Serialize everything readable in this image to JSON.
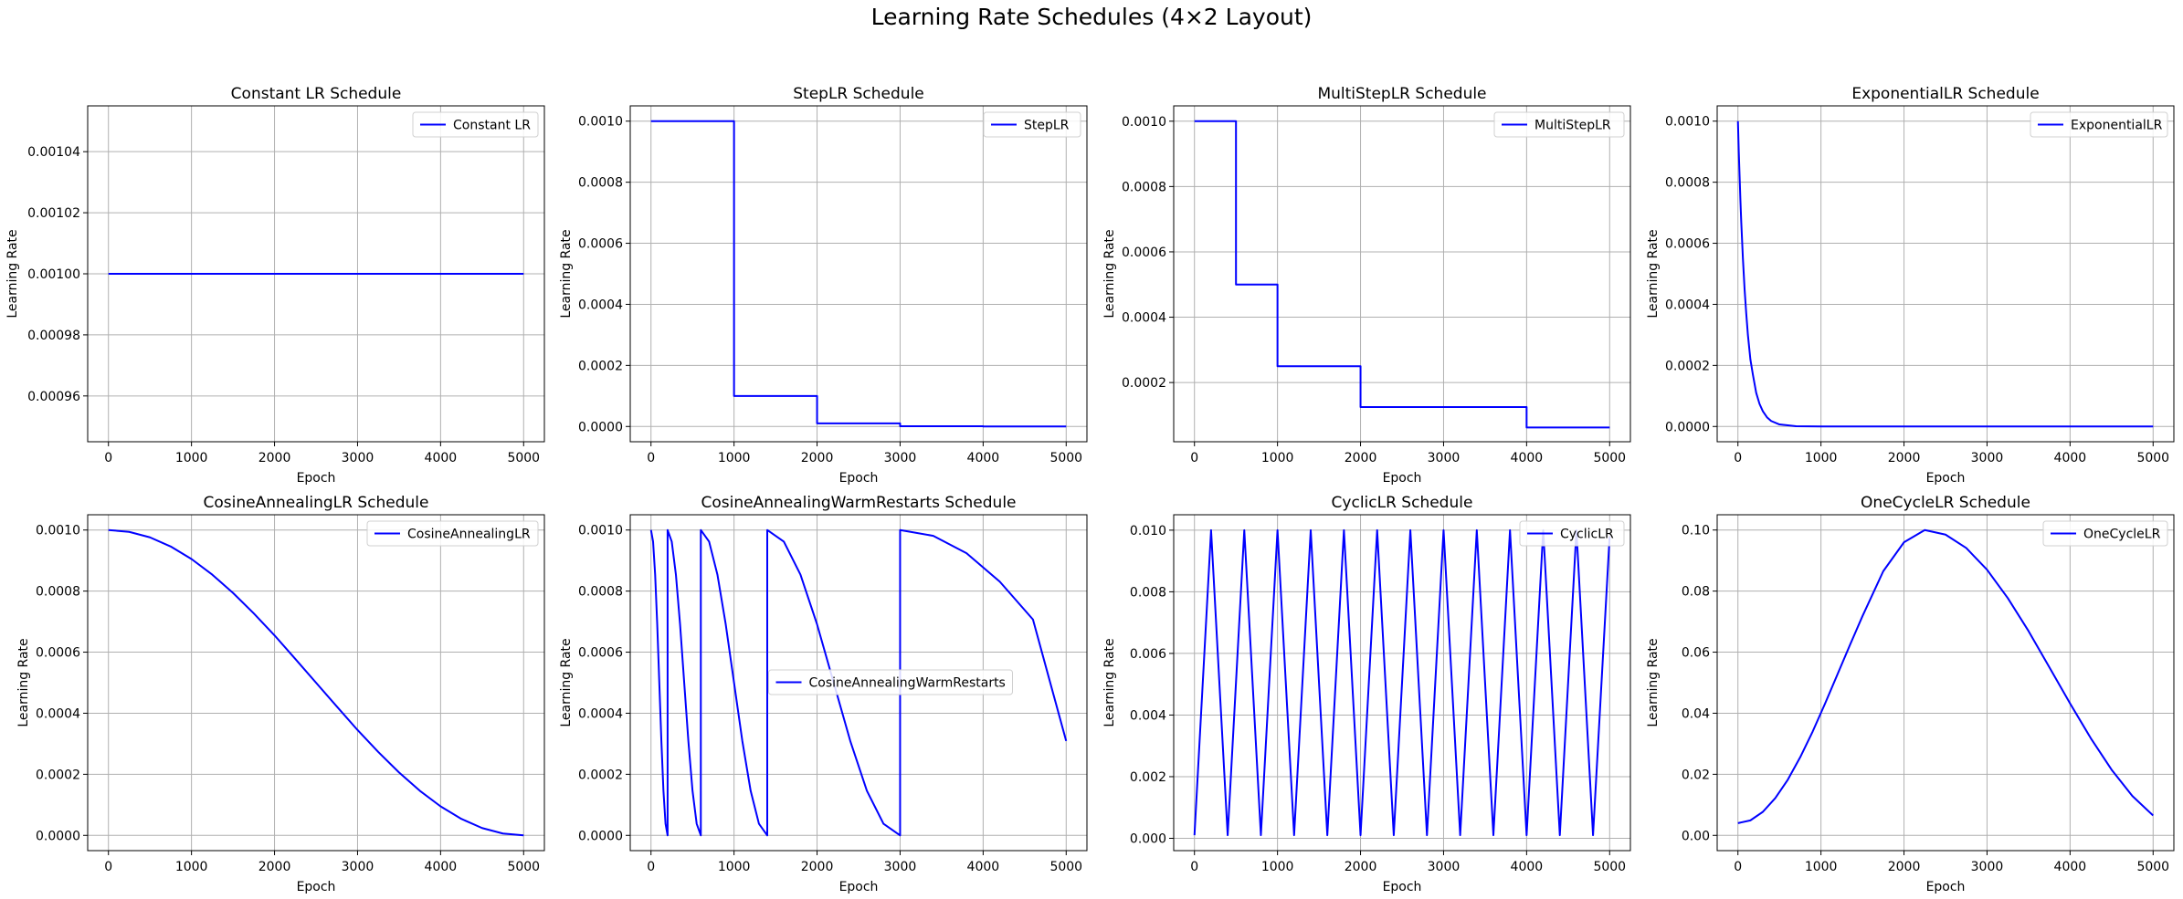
{
  "figure": {
    "suptitle": "Learning Rate Schedules (4×2 Layout)",
    "line_color": "#0000ff",
    "grid_color": "#b0b0b0"
  },
  "chart_data": [
    {
      "type": "line",
      "title": "Constant LR Schedule",
      "xlabel": "Epoch",
      "ylabel": "Learning Rate",
      "legend": "Constant LR",
      "legend_loc": "upper-right",
      "grid": true,
      "xlim": [
        -250,
        5250
      ],
      "ylim": [
        0.000945,
        0.001055
      ],
      "xticks": [
        0,
        1000,
        2000,
        3000,
        4000,
        5000
      ],
      "xtick_labels": [
        "0",
        "1000",
        "2000",
        "3000",
        "4000",
        "5000"
      ],
      "yticks": [
        0.00096,
        0.00098,
        0.001,
        0.00102,
        0.00104
      ],
      "ytick_labels": [
        "0.00096",
        "0.00098",
        "0.00100",
        "0.00102",
        "0.00104"
      ],
      "series": [
        {
          "x": [
            0,
            5000
          ],
          "y": [
            0.001,
            0.001
          ]
        }
      ]
    },
    {
      "type": "line",
      "title": "StepLR Schedule",
      "xlabel": "Epoch",
      "ylabel": "Learning Rate",
      "legend": "StepLR",
      "legend_loc": "upper-right",
      "grid": true,
      "xlim": [
        -250,
        5250
      ],
      "ylim": [
        -5e-05,
        0.00105
      ],
      "xticks": [
        0,
        1000,
        2000,
        3000,
        4000,
        5000
      ],
      "xtick_labels": [
        "0",
        "1000",
        "2000",
        "3000",
        "4000",
        "5000"
      ],
      "yticks": [
        0,
        0.0002,
        0.0004,
        0.0006,
        0.0008,
        0.001
      ],
      "ytick_labels": [
        "0.0000",
        "0.0002",
        "0.0004",
        "0.0006",
        "0.0008",
        "0.0010"
      ],
      "series": [
        {
          "x": [
            0,
            1000,
            1000,
            2000,
            2000,
            3000,
            3000,
            4000,
            4000,
            5000
          ],
          "y": [
            0.001,
            0.001,
            0.0001,
            0.0001,
            1e-05,
            1e-05,
            1e-06,
            1e-06,
            1e-07,
            1e-07
          ]
        }
      ]
    },
    {
      "type": "line",
      "title": "MultiStepLR Schedule",
      "xlabel": "Epoch",
      "ylabel": "Learning Rate",
      "legend": "MultiStepLR",
      "legend_loc": "upper-right",
      "grid": true,
      "xlim": [
        -250,
        5250
      ],
      "ylim": [
        1.875e-05,
        0.00104688
      ],
      "xticks": [
        0,
        1000,
        2000,
        3000,
        4000,
        5000
      ],
      "xtick_labels": [
        "0",
        "1000",
        "2000",
        "3000",
        "4000",
        "5000"
      ],
      "yticks": [
        0.0002,
        0.0004,
        0.0006,
        0.0008,
        0.001
      ],
      "ytick_labels": [
        "0.0002",
        "0.0004",
        "0.0006",
        "0.0008",
        "0.0010"
      ],
      "series": [
        {
          "x": [
            0,
            500,
            500,
            1000,
            1000,
            2000,
            2000,
            4000,
            4000,
            5000
          ],
          "y": [
            0.001,
            0.001,
            0.0005,
            0.0005,
            0.00025,
            0.00025,
            0.000125,
            0.000125,
            6.25e-05,
            6.25e-05
          ]
        }
      ]
    },
    {
      "type": "line",
      "title": "ExponentialLR Schedule",
      "xlabel": "Epoch",
      "ylabel": "Learning Rate",
      "legend": "ExponentialLR",
      "legend_loc": "upper-right",
      "grid": true,
      "xlim": [
        -250,
        5250
      ],
      "ylim": [
        -5e-05,
        0.00105
      ],
      "xticks": [
        0,
        1000,
        2000,
        3000,
        4000,
        5000
      ],
      "xtick_labels": [
        "0",
        "1000",
        "2000",
        "3000",
        "4000",
        "5000"
      ],
      "yticks": [
        0,
        0.0002,
        0.0004,
        0.0006,
        0.0008,
        0.001
      ],
      "ytick_labels": [
        "0.0000",
        "0.0002",
        "0.0004",
        "0.0006",
        "0.0008",
        "0.0010"
      ],
      "series": [
        {
          "x": [
            0,
            10,
            20,
            30,
            40,
            50,
            60,
            80,
            100,
            120,
            150,
            180,
            220,
            260,
            300,
            350,
            400,
            500,
            700,
            1000,
            2000,
            3000,
            4000,
            5000
          ],
          "y": [
            0.001,
            0.0009,
            0.00082,
            0.00074,
            0.00067,
            0.00061,
            0.00055,
            0.00045,
            0.00037,
            0.0003,
            0.00022,
            0.00017,
            0.00011,
            7.4e-05,
            5e-05,
            3e-05,
            1.8e-05,
            6.7e-06,
            9e-07,
            5e-08,
            0,
            0,
            0,
            0
          ]
        }
      ]
    },
    {
      "type": "line",
      "title": "CosineAnnealingLR Schedule",
      "xlabel": "Epoch",
      "ylabel": "Learning Rate",
      "legend": "CosineAnnealingLR",
      "legend_loc": "upper-right",
      "grid": true,
      "xlim": [
        -250,
        5250
      ],
      "ylim": [
        -5e-05,
        0.00105
      ],
      "xticks": [
        0,
        1000,
        2000,
        3000,
        4000,
        5000
      ],
      "xtick_labels": [
        "0",
        "1000",
        "2000",
        "3000",
        "4000",
        "5000"
      ],
      "yticks": [
        0,
        0.0002,
        0.0004,
        0.0006,
        0.0008,
        0.001
      ],
      "ytick_labels": [
        "0.0000",
        "0.0002",
        "0.0004",
        "0.0006",
        "0.0008",
        "0.0010"
      ],
      "series": [
        {
          "x": [
            0,
            250,
            500,
            750,
            1000,
            1250,
            1500,
            1750,
            2000,
            2250,
            2500,
            2750,
            3000,
            3250,
            3500,
            3750,
            4000,
            4250,
            4500,
            4750,
            5000
          ],
          "y": [
            0.001,
            0.000994,
            0.000976,
            0.000946,
            0.000905,
            0.000854,
            0.000794,
            0.000727,
            0.000655,
            0.000578,
            0.0005,
            0.000422,
            0.000345,
            0.000273,
            0.000206,
            0.000146,
            9.5e-05,
            5.4e-05,
            2.4e-05,
            6e-06,
            0
          ]
        }
      ]
    },
    {
      "type": "line",
      "title": "CosineAnnealingWarmRestarts Schedule",
      "xlabel": "Epoch",
      "ylabel": "Learning Rate",
      "legend": "CosineAnnealingWarmRestarts",
      "legend_loc": "center",
      "grid": true,
      "xlim": [
        -250,
        5250
      ],
      "ylim": [
        -5e-05,
        0.00105
      ],
      "xticks": [
        0,
        1000,
        2000,
        3000,
        4000,
        5000
      ],
      "xtick_labels": [
        "0",
        "1000",
        "2000",
        "3000",
        "4000",
        "5000"
      ],
      "yticks": [
        0,
        0.0002,
        0.0004,
        0.0006,
        0.0008,
        0.001
      ],
      "ytick_labels": [
        "0.0000",
        "0.0002",
        "0.0004",
        "0.0006",
        "0.0008",
        "0.0010"
      ],
      "series": [
        {
          "x": [
            0,
            25,
            50,
            75,
            100,
            125,
            150,
            175,
            200,
            200,
            250,
            300,
            350,
            400,
            450,
            500,
            550,
            600,
            600,
            700,
            800,
            900,
            1000,
            1100,
            1200,
            1300,
            1400,
            1400,
            1600,
            1800,
            2000,
            2200,
            2400,
            2600,
            2800,
            3000,
            3000,
            3400,
            3800,
            4200,
            4600,
            5000
          ],
          "y": [
            0.001,
            0.000962,
            0.000854,
            0.000691,
            0.0005,
            0.000309,
            0.000146,
            3.8e-05,
            0,
            0.001,
            0.000962,
            0.000854,
            0.000691,
            0.0005,
            0.000309,
            0.000146,
            3.8e-05,
            0,
            0.001,
            0.000962,
            0.000854,
            0.000691,
            0.0005,
            0.000309,
            0.000146,
            3.8e-05,
            0,
            0.001,
            0.000962,
            0.000854,
            0.000691,
            0.0005,
            0.000309,
            0.000146,
            3.8e-05,
            0,
            0.001,
            0.000981,
            0.000924,
            0.000831,
            0.000707,
            0.000309
          ]
        }
      ]
    },
    {
      "type": "line",
      "title": "CyclicLR Schedule",
      "xlabel": "Epoch",
      "ylabel": "Learning Rate",
      "legend": "CyclicLR",
      "legend_loc": "upper-right",
      "grid": true,
      "xlim": [
        -250,
        5250
      ],
      "ylim": [
        -0.0004,
        0.0105
      ],
      "xticks": [
        0,
        1000,
        2000,
        3000,
        4000,
        5000
      ],
      "xtick_labels": [
        "0",
        "1000",
        "2000",
        "3000",
        "4000",
        "5000"
      ],
      "yticks": [
        0,
        0.002,
        0.004,
        0.006,
        0.008,
        0.01
      ],
      "ytick_labels": [
        "0.000",
        "0.002",
        "0.004",
        "0.006",
        "0.008",
        "0.010"
      ],
      "series": [
        {
          "x": [
            0,
            200,
            400,
            600,
            800,
            1000,
            1200,
            1400,
            1600,
            1800,
            2000,
            2200,
            2400,
            2600,
            2800,
            3000,
            3200,
            3400,
            3600,
            3800,
            4000,
            4200,
            4400,
            4600,
            4800,
            5000
          ],
          "y": [
            0.0001,
            0.01,
            0.0001,
            0.01,
            0.0001,
            0.01,
            0.0001,
            0.01,
            0.0001,
            0.01,
            0.0001,
            0.01,
            0.0001,
            0.01,
            0.0001,
            0.01,
            0.0001,
            0.01,
            0.0001,
            0.01,
            0.0001,
            0.01,
            0.0001,
            0.01,
            0.0001,
            0.0098
          ]
        }
      ]
    },
    {
      "type": "line",
      "title": "OneCycleLR Schedule",
      "xlabel": "Epoch",
      "ylabel": "Learning Rate",
      "legend": "OneCycleLR",
      "legend_loc": "upper-right",
      "grid": true,
      "xlim": [
        -250,
        5250
      ],
      "ylim": [
        -0.005,
        0.105
      ],
      "xticks": [
        0,
        1000,
        2000,
        3000,
        4000,
        5000
      ],
      "xtick_labels": [
        "0",
        "1000",
        "2000",
        "3000",
        "4000",
        "5000"
      ],
      "yticks": [
        0,
        0.02,
        0.04,
        0.06,
        0.08,
        0.1
      ],
      "ytick_labels": [
        "0.00",
        "0.02",
        "0.04",
        "0.06",
        "0.08",
        "0.10"
      ],
      "series": [
        {
          "x": [
            0,
            150,
            300,
            450,
            600,
            750,
            900,
            1050,
            1200,
            1350,
            1500,
            1750,
            2000,
            2250,
            2500,
            2750,
            3000,
            3250,
            3500,
            3750,
            4000,
            4250,
            4500,
            4750,
            5000
          ],
          "y": [
            0.004,
            0.0049,
            0.0077,
            0.0122,
            0.0182,
            0.0256,
            0.034,
            0.0432,
            0.0528,
            0.0624,
            0.0718,
            0.0865,
            0.096,
            0.1,
            0.0985,
            0.0941,
            0.087,
            0.0777,
            0.0669,
            0.0551,
            0.0432,
            0.0318,
            0.0215,
            0.0129,
            0.0065
          ]
        }
      ]
    }
  ]
}
